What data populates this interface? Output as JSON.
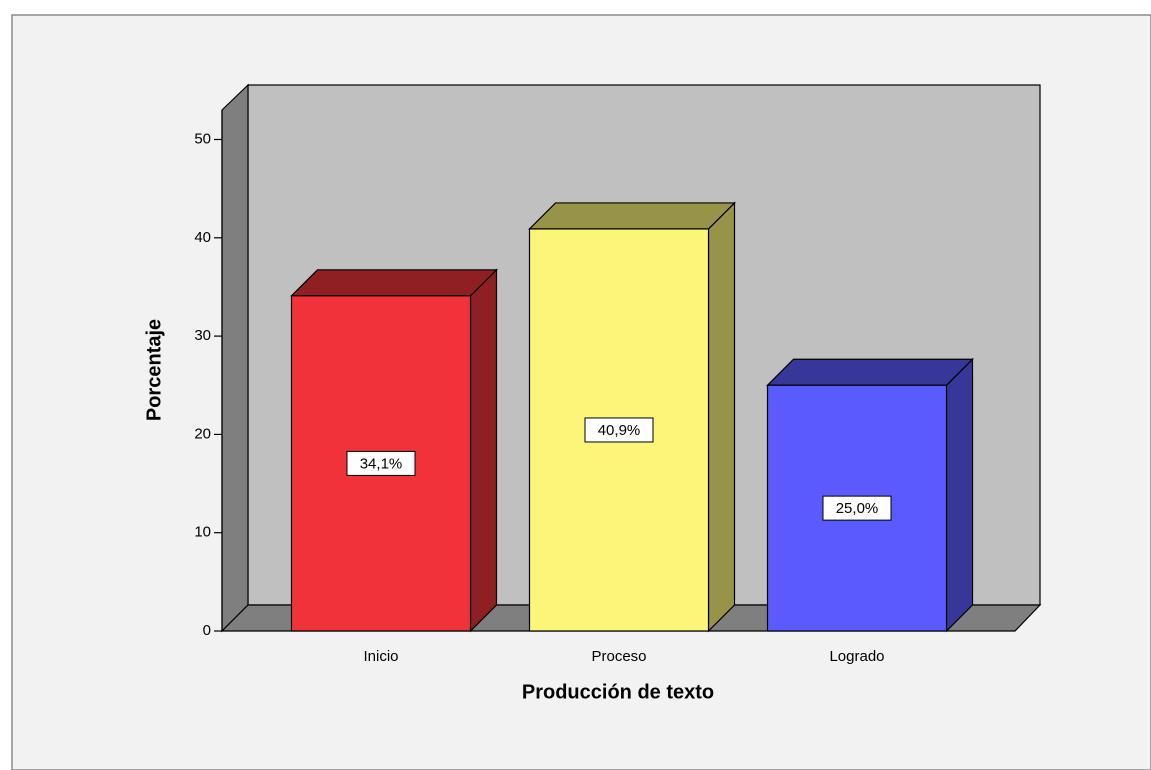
{
  "chart_data": {
    "type": "bar3d",
    "xlabel": "Producción de texto",
    "ylabel": "Porcentaje",
    "categories": [
      "Inicio",
      "Proceso",
      "Logrado"
    ],
    "values": [
      34.1,
      40.9,
      25.0
    ],
    "value_labels": [
      "34,1%",
      "40,9%",
      "25,0%"
    ],
    "colors": [
      "#f0333a",
      "#fbf57a",
      "#5a5bfe"
    ],
    "ylim": [
      0,
      53
    ],
    "yticks": [
      0,
      10,
      20,
      30,
      40,
      50
    ]
  }
}
